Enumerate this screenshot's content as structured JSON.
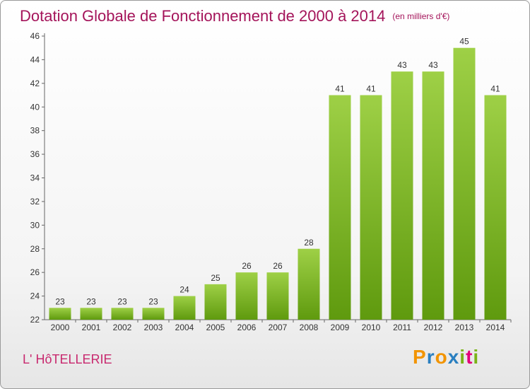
{
  "title": "Dotation Globale de Fonctionnement de 2000 à 2014",
  "unit": "(en milliers d'€)",
  "commune": "L' HôTELLERIE",
  "logo": {
    "text": "Proxiti",
    "letters": [
      "P",
      "r",
      "o",
      "x",
      "i",
      "t",
      "i"
    ],
    "colors": [
      "#f29400",
      "#2a7fc0",
      "#f29400",
      "#2a7fc0",
      "#7ab317",
      "#e3007a",
      "#7ab317"
    ]
  },
  "colors": {
    "bar_top": "#9ed046",
    "bar_bottom": "#5f9a0e",
    "title": "#a4145a",
    "axis": "#666666"
  },
  "chart_data": {
    "type": "bar",
    "categories": [
      "2000",
      "2001",
      "2002",
      "2003",
      "2004",
      "2005",
      "2006",
      "2007",
      "2008",
      "2009",
      "2010",
      "2011",
      "2012",
      "2013",
      "2014"
    ],
    "values": [
      23,
      23,
      23,
      23,
      24,
      25,
      26,
      26,
      28,
      41,
      41,
      43,
      43,
      45,
      41
    ],
    "ylim": [
      22,
      46
    ],
    "yticks": [
      22,
      24,
      26,
      28,
      30,
      32,
      34,
      36,
      38,
      40,
      42,
      44,
      46
    ],
    "grid": false
  }
}
